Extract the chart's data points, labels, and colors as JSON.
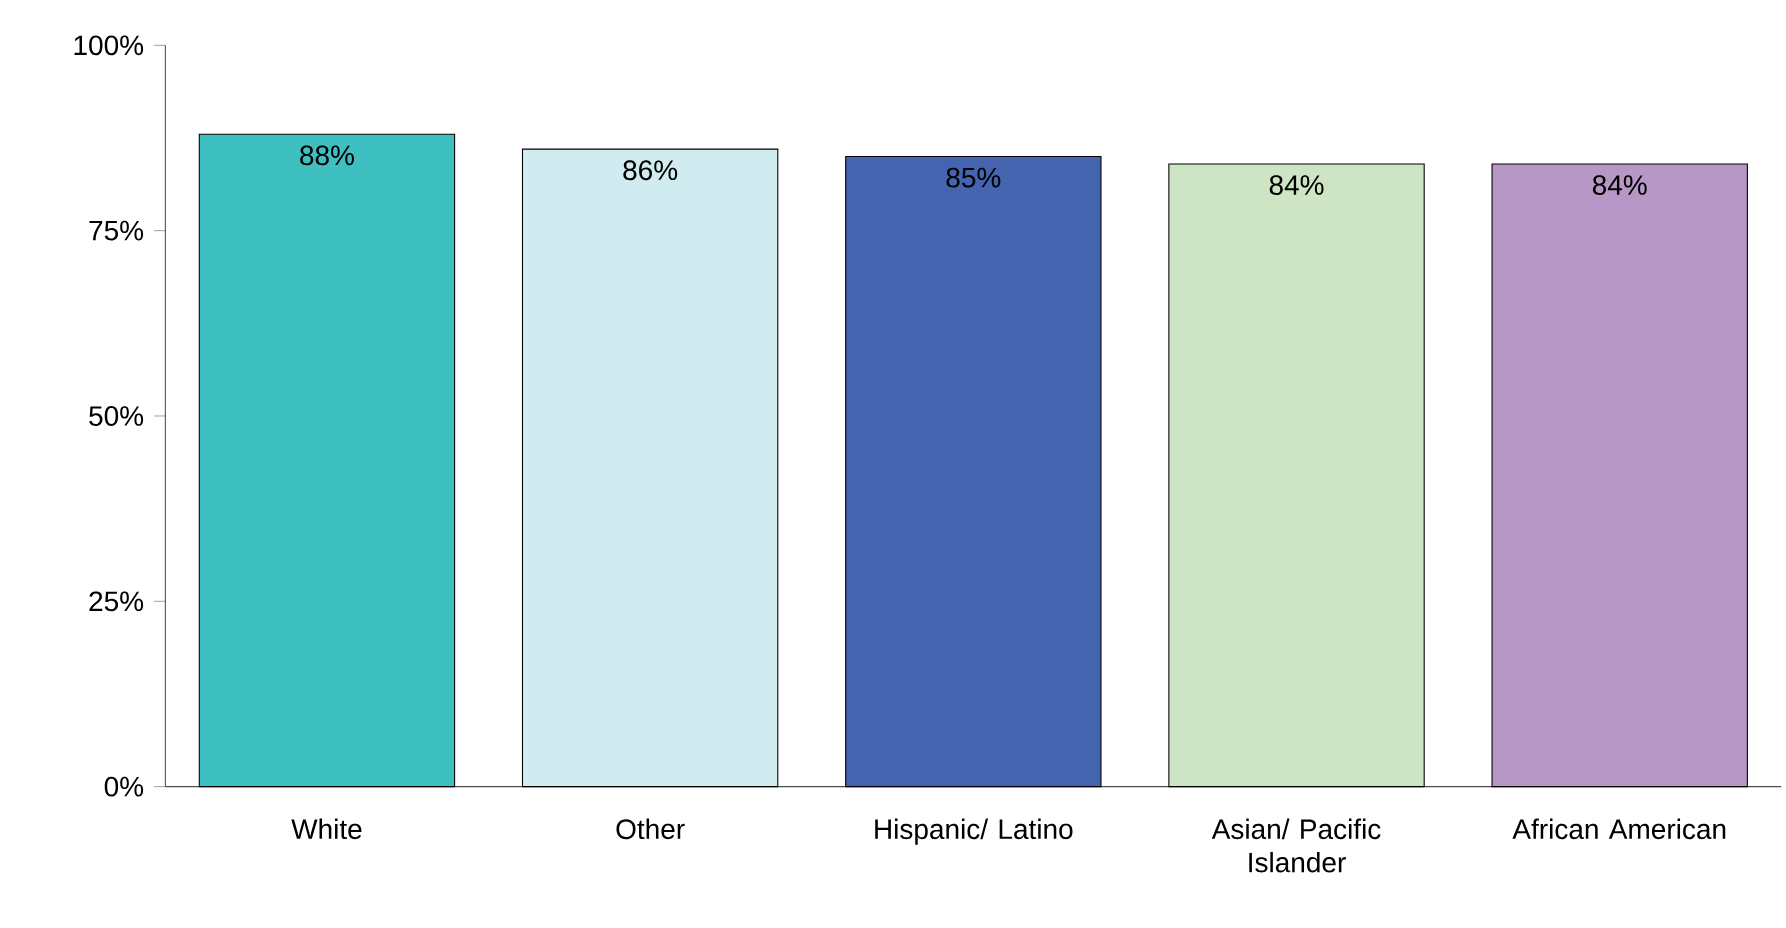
{
  "chart_data": {
    "type": "bar",
    "categories": [
      "White",
      "Other",
      "Hispanic/ Latino",
      "Asian/ Pacific Islander",
      "African American"
    ],
    "values": [
      88,
      86,
      85,
      84,
      84
    ],
    "colors": [
      "#3ec0c0",
      "#d0ecf0",
      "#4464b0",
      "#cde5c4",
      "#b797c6"
    ],
    "value_labels": [
      "88%",
      "86%",
      "85%",
      "84%",
      "84%"
    ],
    "ylim": [
      0,
      100
    ],
    "yticks": [
      {
        "value": 0,
        "label": "0%"
      },
      {
        "value": 25,
        "label": "25%"
      },
      {
        "value": 50,
        "label": "50%"
      },
      {
        "value": 75,
        "label": "75%"
      },
      {
        "value": 100,
        "label": "100%"
      }
    ],
    "grid": false
  }
}
